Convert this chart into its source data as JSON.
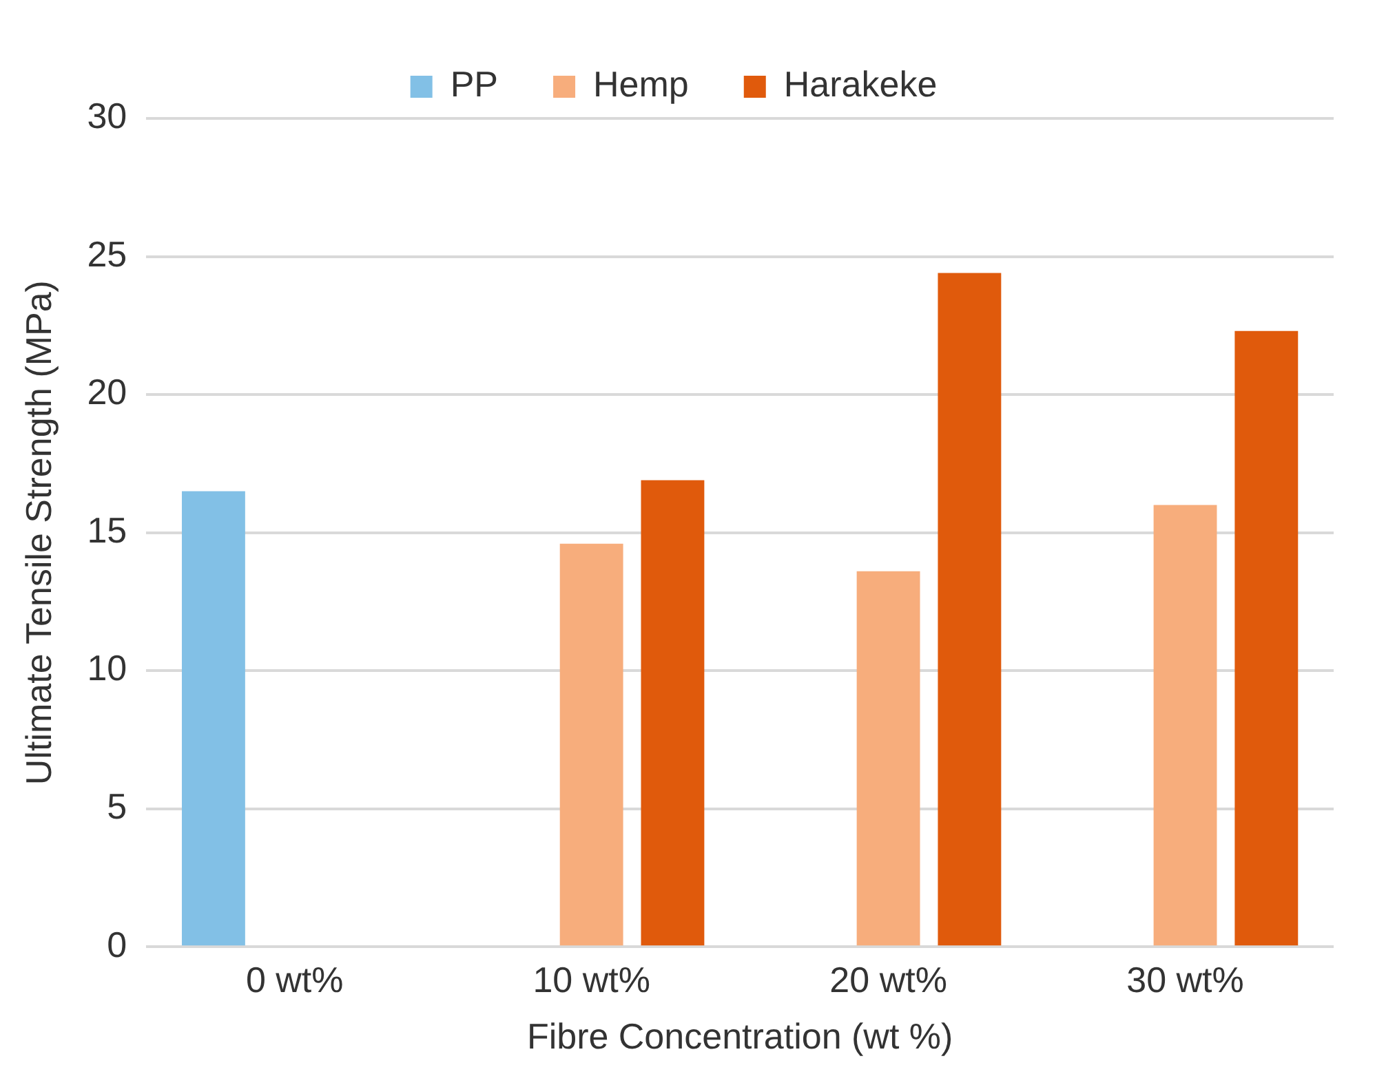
{
  "chart_data": {
    "type": "bar",
    "xlabel": "Fibre Concentration (wt %)",
    "ylabel": "Ultimate Tensile Strength (MPa)",
    "categories": [
      "0 wt%",
      "10 wt%",
      "20 wt%",
      "30 wt%"
    ],
    "series": [
      {
        "name": "PP",
        "color": "#82c0e6",
        "values": [
          16.5,
          null,
          null,
          null
        ]
      },
      {
        "name": "Hemp",
        "color": "#f7ad7c",
        "values": [
          null,
          14.6,
          13.6,
          16.0
        ]
      },
      {
        "name": "Harakeke",
        "color": "#e05a0c",
        "values": [
          null,
          16.9,
          24.4,
          22.3
        ]
      }
    ],
    "ylim": [
      0,
      30
    ],
    "yticks": [
      0,
      5,
      10,
      15,
      20,
      25,
      30
    ],
    "grid": "y",
    "legend": "top"
  }
}
